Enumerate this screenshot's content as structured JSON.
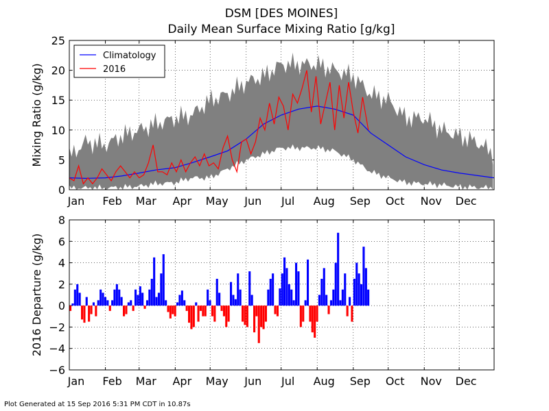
{
  "title": "DSM [DES MOINES]",
  "subtitle": "Daily Mean Surface Mixing Ratio [g/kg]",
  "footer": "Plot Generated at 15 Sep 2016 5:31 PM CDT in 10.87s",
  "colors": {
    "climatology": "#0000ff",
    "year": "#ff0000",
    "range": "#808080",
    "positive": "#0000ff",
    "negative": "#ff0000"
  },
  "chart_data": [
    {
      "type": "line",
      "ylabel": "Mixing Ratio (g/kg)",
      "xlabel": "",
      "xlim": [
        1,
        366
      ],
      "ylim": [
        0,
        25
      ],
      "yticks": [
        0,
        5,
        10,
        15,
        20,
        25
      ],
      "xticks": [
        {
          "day": 1,
          "label": "Jan"
        },
        {
          "day": 32,
          "label": "Feb"
        },
        {
          "day": 61,
          "label": "Mar"
        },
        {
          "day": 92,
          "label": "Apr"
        },
        {
          "day": 122,
          "label": "May"
        },
        {
          "day": 153,
          "label": "Jun"
        },
        {
          "day": 183,
          "label": "Jul"
        },
        {
          "day": 214,
          "label": "Aug"
        },
        {
          "day": 245,
          "label": "Sep"
        },
        {
          "day": 275,
          "label": "Oct"
        },
        {
          "day": 306,
          "label": "Nov"
        },
        {
          "day": 336,
          "label": "Dec"
        }
      ],
      "grid": true,
      "legend": "top-left",
      "range_band": {
        "x": [
          1,
          15,
          32,
          46,
          61,
          75,
          92,
          106,
          122,
          137,
          153,
          168,
          183,
          198,
          214,
          229,
          245,
          260,
          275,
          290,
          306,
          321,
          336,
          351,
          366
        ],
        "max": [
          5.5,
          8,
          7.5,
          9,
          10,
          11,
          12,
          12.5,
          15,
          16,
          18,
          19,
          21,
          21,
          21,
          20,
          19,
          16,
          15,
          12,
          12,
          10,
          9,
          8,
          6
        ],
        "min": [
          0.3,
          0.3,
          0.3,
          0.4,
          0.6,
          1,
          1.2,
          2,
          2,
          3.5,
          5,
          6,
          7,
          7,
          7,
          6.5,
          5,
          3,
          2,
          1.2,
          1,
          0.8,
          0.5,
          0.4,
          0.3
        ]
      },
      "series": [
        {
          "name": "Climatology",
          "x": [
            1,
            15,
            32,
            46,
            61,
            75,
            92,
            106,
            122,
            137,
            153,
            168,
            183,
            198,
            214,
            229,
            245,
            260,
            275,
            290,
            306,
            321,
            336,
            351,
            366
          ],
          "values": [
            2,
            1.9,
            2,
            2.3,
            2.8,
            3.3,
            3.7,
            4.5,
            5.5,
            6.5,
            8.5,
            11,
            12.5,
            13.5,
            14,
            13.5,
            12.5,
            9.5,
            7.5,
            5.5,
            4.2,
            3.3,
            2.8,
            2.4,
            2
          ]
        },
        {
          "name": "2016",
          "x": [
            1,
            5,
            9,
            13,
            17,
            21,
            25,
            29,
            33,
            37,
            41,
            45,
            49,
            53,
            57,
            61,
            65,
            69,
            73,
            77,
            81,
            85,
            89,
            93,
            97,
            101,
            105,
            109,
            113,
            117,
            121,
            125,
            129,
            133,
            137,
            141,
            145,
            149,
            153,
            157,
            161,
            165,
            169,
            173,
            177,
            181,
            185,
            189,
            193,
            197,
            201,
            205,
            209,
            213,
            217,
            221,
            225,
            229,
            233,
            237,
            241,
            245,
            249,
            253,
            258
          ],
          "values": [
            2,
            1.5,
            4,
            1,
            2,
            1,
            2,
            3.5,
            2.5,
            1.5,
            3,
            4,
            3,
            2,
            3,
            2,
            2.5,
            4.5,
            7.5,
            3,
            3,
            2.5,
            4.5,
            3,
            5,
            3,
            4.5,
            5.5,
            4,
            6,
            4,
            4.5,
            3.5,
            7,
            9,
            5,
            3,
            8,
            8.5,
            6,
            8,
            12,
            10,
            14.5,
            11,
            15.5,
            14,
            10,
            16,
            14.5,
            17,
            20,
            13,
            19,
            11,
            14.5,
            18,
            10,
            17.5,
            12,
            18,
            13,
            9.5,
            15.5,
            10
          ]
        }
      ]
    },
    {
      "type": "bar",
      "ylabel": "2016 Departure (g/kg)",
      "xlabel": "",
      "xlim": [
        1,
        366
      ],
      "ylim": [
        -6,
        8
      ],
      "yticks": [
        -6,
        -4,
        -2,
        0,
        2,
        4,
        6,
        8
      ],
      "xticks": [
        {
          "day": 1,
          "label": "Jan"
        },
        {
          "day": 32,
          "label": "Feb"
        },
        {
          "day": 61,
          "label": "Mar"
        },
        {
          "day": 92,
          "label": "Apr"
        },
        {
          "day": 122,
          "label": "May"
        },
        {
          "day": 153,
          "label": "Jun"
        },
        {
          "day": 183,
          "label": "Jul"
        },
        {
          "day": 214,
          "label": "Aug"
        },
        {
          "day": 245,
          "label": "Sep"
        },
        {
          "day": 275,
          "label": "Oct"
        },
        {
          "day": 306,
          "label": "Nov"
        },
        {
          "day": 336,
          "label": "Dec"
        }
      ],
      "grid": true,
      "x": [
        1,
        3,
        5,
        7,
        9,
        11,
        13,
        15,
        17,
        19,
        21,
        23,
        25,
        27,
        29,
        31,
        33,
        35,
        37,
        39,
        41,
        43,
        45,
        47,
        49,
        51,
        53,
        55,
        57,
        59,
        61,
        63,
        65,
        67,
        69,
        71,
        73,
        75,
        77,
        79,
        81,
        83,
        85,
        87,
        89,
        91,
        93,
        95,
        97,
        99,
        101,
        103,
        105,
        107,
        109,
        111,
        113,
        115,
        117,
        119,
        121,
        123,
        125,
        127,
        129,
        131,
        133,
        135,
        137,
        139,
        141,
        143,
        145,
        147,
        149,
        151,
        153,
        155,
        157,
        159,
        161,
        163,
        165,
        167,
        169,
        171,
        173,
        175,
        177,
        179,
        181,
        183,
        185,
        187,
        189,
        191,
        193,
        195,
        197,
        199,
        201,
        203,
        205,
        207,
        209,
        211,
        213,
        215,
        217,
        219,
        221,
        223,
        225,
        227,
        229,
        231,
        233,
        235,
        237,
        239,
        241,
        243,
        245,
        247,
        249,
        251,
        253,
        255,
        257
      ],
      "values": [
        -0.5,
        0.2,
        1.5,
        2,
        1.2,
        -1.3,
        -1.6,
        0.8,
        -1.5,
        -0.8,
        0.3,
        -1,
        0.5,
        1.5,
        1.2,
        0.8,
        0.5,
        -0.5,
        0.5,
        1.5,
        2,
        1.5,
        0.8,
        -1,
        -0.8,
        0.3,
        0.5,
        -0.5,
        1.5,
        1,
        1.8,
        1.2,
        -0.3,
        0.5,
        1.5,
        2.5,
        4.5,
        0.8,
        1.2,
        3,
        4.8,
        0.5,
        -0.6,
        -1.2,
        -0.8,
        -1,
        0.3,
        1,
        1.4,
        0.5,
        -0.5,
        -1.6,
        -2.2,
        -2,
        0.3,
        -1.5,
        -0.5,
        -1,
        -1,
        1.5,
        0.5,
        -1,
        -1.5,
        2.5,
        1.2,
        -0.5,
        -1,
        -2,
        -1.5,
        2.2,
        1,
        0.6,
        3,
        1.5,
        -1.5,
        -1.8,
        -2,
        3.2,
        1,
        -2.5,
        -1,
        -3.5,
        -2,
        -2.2,
        -1.5,
        1.5,
        2.5,
        3,
        -0.8,
        -1,
        1.6,
        3,
        4.5,
        3.5,
        2,
        1.5,
        0.5,
        4,
        3.2,
        -2,
        -1.5,
        0.5,
        4.3,
        -1.5,
        -2.5,
        -3,
        -1.5,
        1,
        2.5,
        3.5,
        1,
        -0.8,
        0.5,
        1.5,
        4,
        6.8,
        0.5,
        1.5,
        3,
        -1,
        0.8,
        -1.5,
        2.5,
        4,
        3,
        2,
        5.5,
        3.5,
        1.5
      ]
    }
  ]
}
